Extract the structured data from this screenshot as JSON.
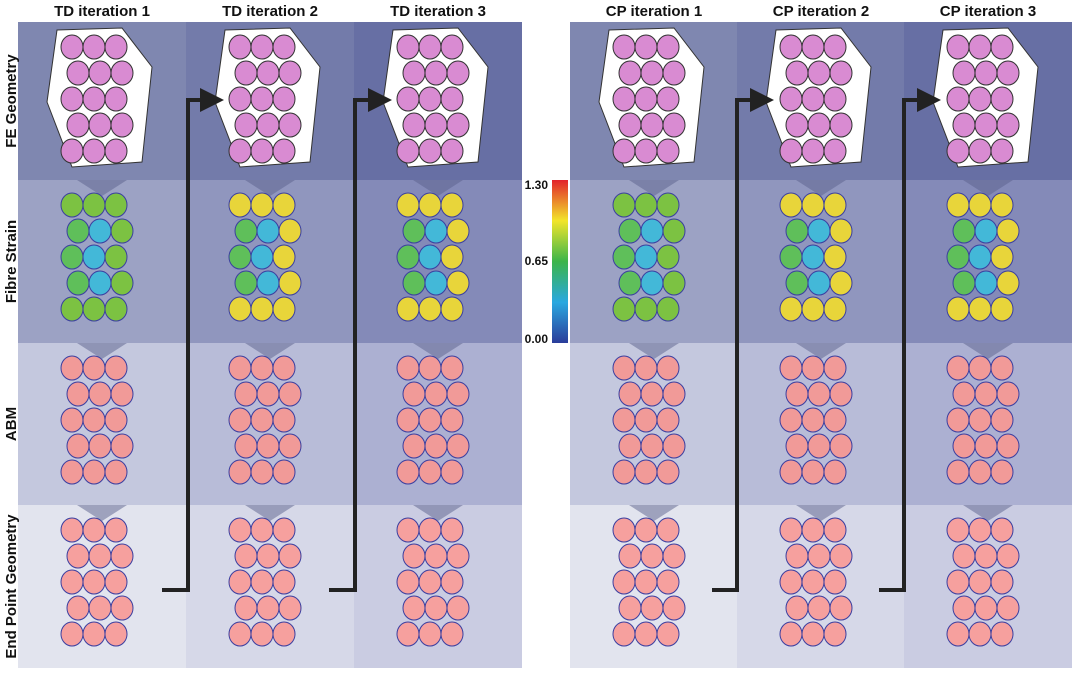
{
  "columns": [
    "TD iteration 1",
    "TD iteration 2",
    "TD iteration 3",
    "CP iteration 1",
    "CP iteration 2",
    "CP iteration 3"
  ],
  "rows": [
    "FE Geometry",
    "Fibre Strain",
    "ABM",
    "End Point Geometry"
  ],
  "colorbar": {
    "labels": [
      "1.30",
      "0.65",
      "0.00"
    ]
  }
}
